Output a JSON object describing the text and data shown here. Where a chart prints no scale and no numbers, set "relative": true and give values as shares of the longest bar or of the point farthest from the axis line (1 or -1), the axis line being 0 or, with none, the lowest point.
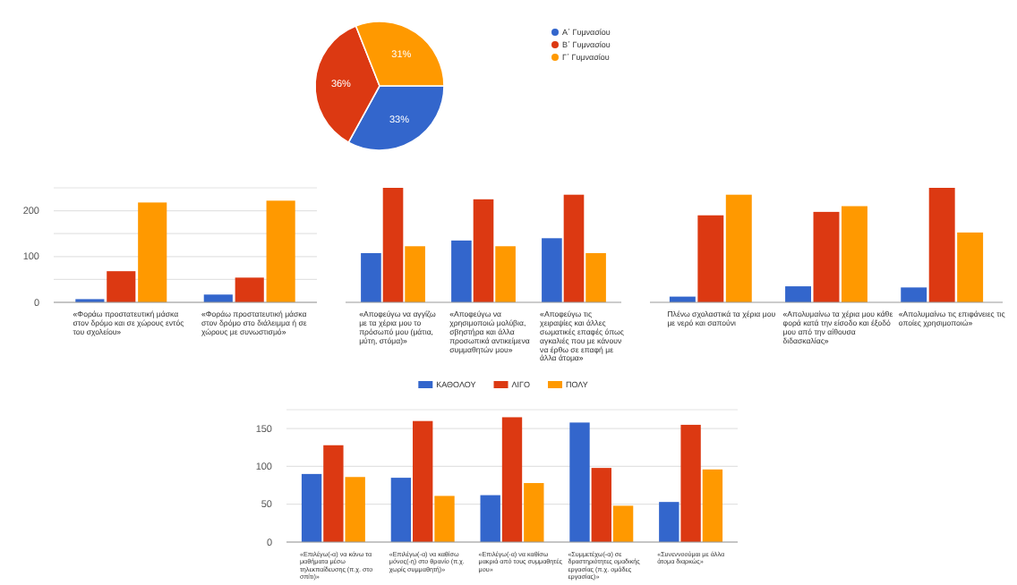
{
  "chart_data": [
    {
      "type": "pie",
      "categories": [
        "Α΄ Γυμνασίου",
        "Β΄ Γυμνασίου",
        "Γ΄ Γυμνασίου"
      ],
      "values": [
        33,
        36,
        31
      ],
      "colors": [
        "#3366cc",
        "#dc3912",
        "#ff9900"
      ],
      "value_labels": [
        "33%",
        "36%",
        "31%"
      ],
      "legend": "right"
    },
    {
      "type": "bar",
      "categories": [
        "«Φοράω προστατευτική μάσκα στον δρόμο και σε χώρους εντός του σχολείου»",
        "«Φοράω προστατευτική μάσκα στον δρόμο στο διάλειμμα ή σε χώρους με συνωστισμό»"
      ],
      "ylim": [
        0,
        250
      ],
      "yticks": [
        0,
        {
          "value": 50,
          "label": null
        },
        100,
        {
          "value": 150,
          "label": null
        },
        200,
        {
          "value": 250,
          "label": null
        }
      ],
      "grid": "y",
      "series": [
        {
          "color": "#3366cc",
          "values": [
            7,
            17
          ]
        },
        {
          "color": "#dc3912",
          "values": [
            68,
            54
          ]
        },
        {
          "color": "#ff9900",
          "values": [
            218,
            222
          ]
        }
      ]
    },
    {
      "type": "bar",
      "relative": true,
      "categories": [
        "«Αποφεύγω να αγγίζω με τα χέρια μου το πρόσωπό μου (μάτια, μύτη, στόμα)»",
        "«Αποφεύγω να χρησιμοποιώ μολύβια, σβηστήρα και άλλα προσωπικά αντικείμενα συμμαθητών μου»",
        "«Αποφεύγω τις χειραψίες και άλλες σωματικές επαφές όπως αγκαλιές που με κάνουν να έρθω σε επαφή με άλλα άτομα»"
      ],
      "series": [
        {
          "color": "#3366cc",
          "values": [
            0.43,
            0.54,
            0.56
          ]
        },
        {
          "color": "#dc3912",
          "values": [
            1,
            0.9,
            0.94
          ]
        },
        {
          "color": "#ff9900",
          "values": [
            0.49,
            0.49,
            0.43
          ]
        }
      ]
    },
    {
      "type": "bar",
      "relative": true,
      "categories": [
        "Πλένω σχολαστικά τα χέρια μου με νερό και σαπούνι",
        "«Απολυμαίνω τα χέρια μου κάθε φορά κατά την είσοδο και έξοδό μου από την αίθουσα διδασκαλίας»",
        "«Απολυμαίνω τις επιφάνειες τις οποίες χρησιμοποιώ»"
      ],
      "series": [
        {
          "color": "#3366cc",
          "values": [
            0.05,
            0.14,
            0.13
          ]
        },
        {
          "color": "#dc3912",
          "values": [
            0.76,
            0.79,
            1
          ]
        },
        {
          "color": "#ff9900",
          "values": [
            0.94,
            0.84,
            0.61
          ]
        }
      ]
    },
    {
      "type": "bar",
      "categories": [
        "«Επιλέγω(-α) να κάνω τα μαθήματα μέσω τηλεκπαίδευσης (π.χ. στο σπίτι)»",
        "«Επιλέγω(-α) να καθίσω μόνος(-η) στο θρανίο (π.χ. χωρίς συμμαθητή)»",
        "«Επιλέγω(-α) να καθίσω μακριά από τους συμμαθητές μου»",
        "«Συμμετέχω(-α) σε δραστηριότητες ομαδικής εργασίας (π.χ. ομάδες εργασίας)»",
        "«Συνεννοούμαι με άλλα άτομα διαρκώς»"
      ],
      "ylim": [
        0,
        175
      ],
      "yticks": [
        0,
        50,
        100,
        150,
        {
          "value": 175,
          "label": null
        }
      ],
      "grid": "y",
      "legend": "top",
      "series": [
        {
          "name": "ΚΑΘΟΛΟΥ",
          "color": "#3366cc",
          "values": [
            90,
            85,
            62,
            158,
            53
          ]
        },
        {
          "name": "ΛΙΓΟ",
          "color": "#dc3912",
          "values": [
            128,
            160,
            165,
            98,
            155
          ]
        },
        {
          "name": "ΠΟΛΥ",
          "color": "#ff9900",
          "values": [
            86,
            61,
            78,
            48,
            96
          ]
        }
      ]
    }
  ]
}
